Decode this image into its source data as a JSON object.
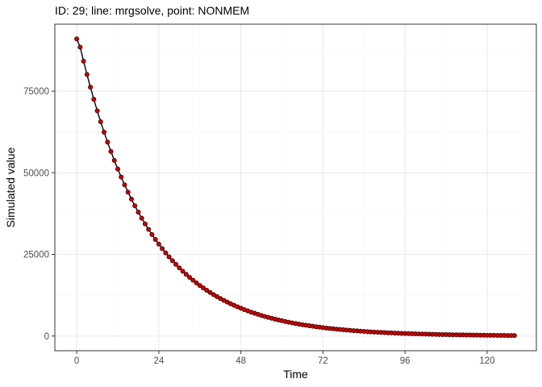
{
  "chart_data": {
    "type": "line",
    "title": "ID: 29; line: mrgsolve, point: NONMEM",
    "xlabel": "Time",
    "ylabel": "Simulated value",
    "xlim": [
      -6.4,
      134.4
    ],
    "ylim": [
      -4500,
      95500
    ],
    "x_ticks": [
      0,
      24,
      48,
      72,
      96,
      120
    ],
    "y_ticks": [
      0,
      25000,
      50000,
      75000
    ],
    "x_tick_labels": [
      "0",
      "24",
      "48",
      "72",
      "96",
      "120"
    ],
    "y_tick_labels": [
      "0",
      "25000",
      "50000",
      "75000"
    ],
    "grid": true,
    "legend": "none",
    "colors": {
      "line": "#000000",
      "point_fill": "#cc0000",
      "point_stroke": "#3a0000",
      "panel_border": "#333333",
      "grid_major": "#ebebeb",
      "grid_minor": "#f5f5f5"
    },
    "series": [
      {
        "kind": "line",
        "x": [
          0,
          1,
          2,
          3,
          4,
          5,
          6,
          7,
          8,
          9,
          10,
          11,
          12,
          13,
          14,
          15,
          16,
          17,
          18,
          19,
          20,
          21,
          22,
          23,
          24,
          25,
          26,
          27,
          28,
          29,
          30,
          31,
          32,
          33,
          34,
          35,
          36,
          37,
          38,
          39,
          40,
          41,
          42,
          43,
          44,
          45,
          46,
          47,
          48,
          49,
          50,
          51,
          52,
          53,
          54,
          55,
          56,
          57,
          58,
          59,
          60,
          61,
          62,
          63,
          64,
          65,
          66,
          67,
          68,
          69,
          70,
          71,
          72,
          73,
          74,
          75,
          76,
          77,
          78,
          79,
          80,
          81,
          82,
          83,
          84,
          85,
          86,
          87,
          88,
          89,
          90,
          91,
          92,
          93,
          94,
          95,
          96,
          97,
          98,
          99,
          100,
          101,
          102,
          103,
          104,
          105,
          106,
          107,
          108,
          109,
          110,
          111,
          112,
          113,
          114,
          115,
          116,
          117,
          118,
          119,
          120,
          121,
          122,
          123,
          124,
          125,
          126,
          127,
          128
        ],
        "y": [
          91000,
          88469,
          84177,
          80087,
          76196,
          72494,
          68972,
          65621,
          62433,
          59400,
          56514,
          53768,
          51156,
          48670,
          46306,
          44056,
          41915,
          39879,
          37941,
          36098,
          34344,
          32675,
          31088,
          29577,
          28140,
          26773,
          25472,
          24235,
          23057,
          21937,
          20871,
          19857,
          18892,
          17974,
          17101,
          16270,
          15480,
          14728,
          14012,
          13331,
          12684,
          12067,
          11481,
          10923,
          10393,
          9888,
          9407,
          8950,
          8516,
          8102,
          7708,
          7334,
          6977,
          6638,
          6316,
          6009,
          5717,
          5439,
          5175,
          4924,
          4684,
          4457,
          4240,
          4034,
          3838,
          3652,
          3474,
          3306,
          3145,
          2992,
          2847,
          2709,
          2577,
          2452,
          2333,
          2219,
          2111,
          2009,
          1911,
          1818,
          1730,
          1646,
          1566,
          1490,
          1417,
          1348,
          1283,
          1221,
          1161,
          1105,
          1051,
          1000,
          951,
          905,
          861,
          819,
          780,
          742,
          706,
          671,
          639,
          608,
          578,
          550,
          523,
          498,
          474,
          451,
          429,
          408,
          388,
          369,
          351,
          334,
          318,
          303,
          288,
          274,
          261,
          248,
          236,
          224,
          214,
          203,
          193,
          184,
          175,
          166,
          158
        ]
      },
      {
        "kind": "point",
        "x": [
          0,
          1,
          2,
          3,
          4,
          5,
          6,
          7,
          8,
          9,
          10,
          11,
          12,
          13,
          14,
          15,
          16,
          17,
          18,
          19,
          20,
          21,
          22,
          23,
          24,
          25,
          26,
          27,
          28,
          29,
          30,
          31,
          32,
          33,
          34,
          35,
          36,
          37,
          38,
          39,
          40,
          41,
          42,
          43,
          44,
          45,
          46,
          47,
          48,
          49,
          50,
          51,
          52,
          53,
          54,
          55,
          56,
          57,
          58,
          59,
          60,
          61,
          62,
          63,
          64,
          65,
          66,
          67,
          68,
          69,
          70,
          71,
          72,
          73,
          74,
          75,
          76,
          77,
          78,
          79,
          80,
          81,
          82,
          83,
          84,
          85,
          86,
          87,
          88,
          89,
          90,
          91,
          92,
          93,
          94,
          95,
          96,
          97,
          98,
          99,
          100,
          101,
          102,
          103,
          104,
          105,
          106,
          107,
          108,
          109,
          110,
          111,
          112,
          113,
          114,
          115,
          116,
          117,
          118,
          119,
          120,
          121,
          122,
          123,
          124,
          125,
          126,
          127,
          128
        ],
        "y": [
          91000,
          88469,
          84177,
          80087,
          76196,
          72494,
          68972,
          65621,
          62433,
          59400,
          56514,
          53768,
          51156,
          48670,
          46306,
          44056,
          41915,
          39879,
          37941,
          36098,
          34344,
          32675,
          31088,
          29577,
          28140,
          26773,
          25472,
          24235,
          23057,
          21937,
          20871,
          19857,
          18892,
          17974,
          17101,
          16270,
          15480,
          14728,
          14012,
          13331,
          12684,
          12067,
          11481,
          10923,
          10393,
          9888,
          9407,
          8950,
          8516,
          8102,
          7708,
          7334,
          6977,
          6638,
          6316,
          6009,
          5717,
          5439,
          5175,
          4924,
          4684,
          4457,
          4240,
          4034,
          3838,
          3652,
          3474,
          3306,
          3145,
          2992,
          2847,
          2709,
          2577,
          2452,
          2333,
          2219,
          2111,
          2009,
          1911,
          1818,
          1730,
          1646,
          1566,
          1490,
          1417,
          1348,
          1283,
          1221,
          1161,
          1105,
          1051,
          1000,
          951,
          905,
          861,
          819,
          780,
          742,
          706,
          671,
          639,
          608,
          578,
          550,
          523,
          498,
          474,
          451,
          429,
          408,
          388,
          369,
          351,
          334,
          318,
          303,
          288,
          274,
          261,
          248,
          236,
          224,
          214,
          203,
          193,
          184,
          175,
          166,
          158
        ]
      }
    ]
  }
}
